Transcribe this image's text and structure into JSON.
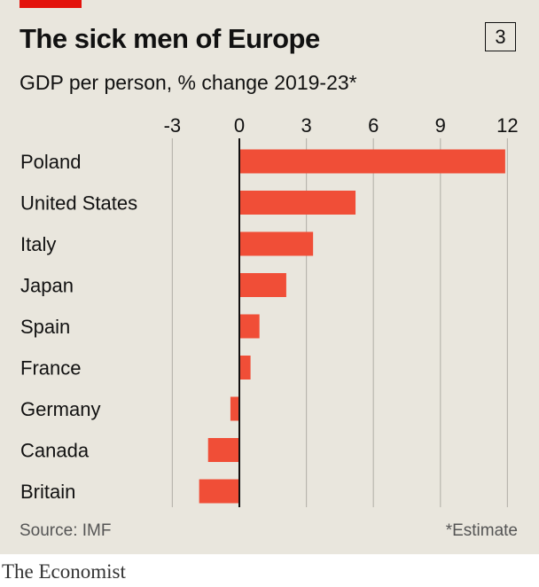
{
  "header": {
    "title": "The sick men of Europe",
    "chart_number": "3",
    "subtitle": "GDP per person, % change 2019-23*"
  },
  "footer": {
    "source": "Source: IMF",
    "note": "*Estimate",
    "brand": "The Economist"
  },
  "colors": {
    "bar": "#f04e37",
    "accent": "#e3120b",
    "grid": "#b9b6ae",
    "axis": "#111111"
  },
  "chart_data": {
    "type": "bar",
    "orientation": "horizontal",
    "title": "The sick men of Europe",
    "subtitle": "GDP per person, % change 2019-23*",
    "categories": [
      "Poland",
      "United States",
      "Italy",
      "Japan",
      "Spain",
      "France",
      "Germany",
      "Canada",
      "Britain"
    ],
    "values": [
      11.9,
      5.2,
      3.3,
      2.1,
      0.9,
      0.5,
      -0.4,
      -1.4,
      -1.8
    ],
    "ticks": [
      -3,
      0,
      3,
      6,
      9,
      12
    ],
    "tick_labels": [
      "-3",
      "0",
      "3",
      "6",
      "9",
      "12"
    ],
    "xlim": [
      -3,
      12
    ],
    "xlabel": "",
    "ylabel": "",
    "grid": true,
    "axis_position": "top"
  }
}
